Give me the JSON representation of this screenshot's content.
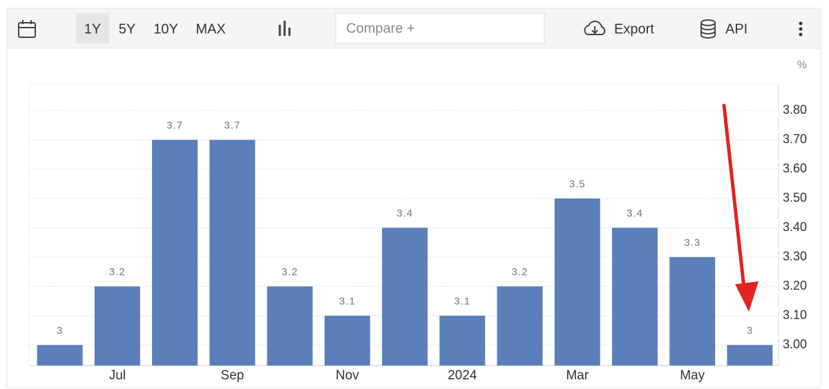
{
  "toolbar": {
    "ranges": [
      "1Y",
      "5Y",
      "10Y",
      "MAX"
    ],
    "compare": "Compare +",
    "export": "Export",
    "api": "API"
  },
  "chart_data": {
    "type": "bar",
    "unit": "%",
    "categories": [
      null,
      "Jul",
      null,
      "Sep",
      null,
      "Nov",
      null,
      "2024",
      null,
      "Mar",
      null,
      "May",
      null
    ],
    "values": [
      3,
      3.2,
      3.7,
      3.7,
      3.2,
      3.1,
      3.4,
      3.1,
      3.2,
      3.5,
      3.4,
      3.3,
      3
    ],
    "color": "#5b7fbb",
    "ylim": [
      2.93,
      3.89
    ],
    "yticks": [
      {
        "value": 3,
        "label": "3.00"
      },
      {
        "value": 3.1,
        "label": "3.10"
      },
      {
        "value": 3.2,
        "label": "3.20"
      },
      {
        "value": 3.3,
        "label": "3.30"
      },
      {
        "value": 3.4,
        "label": "3.40"
      },
      {
        "value": 3.5,
        "label": "3.50"
      },
      {
        "value": 3.6,
        "label": "3.60"
      },
      {
        "value": 3.7,
        "label": "3.70"
      },
      {
        "value": 3.8,
        "label": "3.80"
      }
    ],
    "grid": true
  }
}
